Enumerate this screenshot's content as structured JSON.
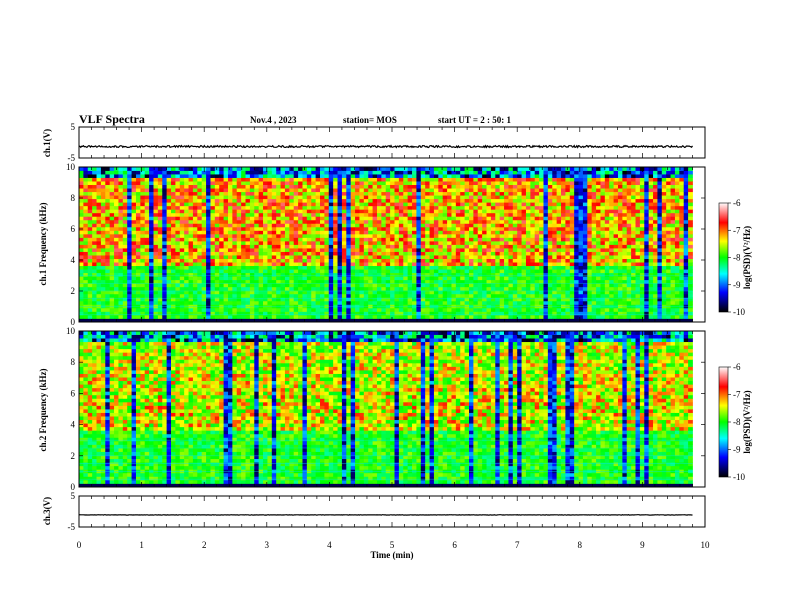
{
  "header": {
    "title": "VLF Spectra",
    "date": "Nov.4 , 2023",
    "station": "station= MOS",
    "start": "start UT = 2 : 50: 1"
  },
  "chart_data": [
    {
      "type": "line",
      "panel": "ch1-waveform",
      "ylabel": "ch.1(V)",
      "ylim": [
        -5,
        5
      ],
      "y_ticks": [
        "5",
        "-5"
      ],
      "level": -1.3,
      "x_range": [
        0,
        9.8
      ]
    },
    {
      "type": "heatmap",
      "panel": "ch1-spectrogram",
      "ylabel": "ch.1 Frequency (kHz)",
      "ylim": [
        0,
        10
      ],
      "y_ticks": [
        "0",
        "2",
        "4",
        "6",
        "8",
        "10"
      ],
      "x_range": [
        0,
        9.8
      ],
      "colorbar": {
        "label": "log(PSD)(V²/Hz)",
        "range": [
          -10,
          -6
        ],
        "ticks": [
          "-6",
          "-7",
          "-8",
          "-9",
          "-10"
        ],
        "colors": [
          "#000000",
          "#0000ff",
          "#00ffff",
          "#00ff00",
          "#ffff00",
          "#ff0000",
          "#ffffff"
        ]
      }
    },
    {
      "type": "heatmap",
      "panel": "ch2-spectrogram",
      "ylabel": "ch.2 Frequency (kHz)",
      "ylim": [
        0,
        10
      ],
      "y_ticks": [
        "0",
        "2",
        "4",
        "6",
        "8",
        "10"
      ],
      "x_range": [
        0,
        9.8
      ],
      "colorbar": {
        "label": "log(PSD)(V²/Hz)",
        "range": [
          -10,
          -6
        ],
        "ticks": [
          "-6",
          "-7",
          "-8",
          "-9",
          "-10"
        ],
        "colors": [
          "#000000",
          "#0000ff",
          "#00ffff",
          "#00ff00",
          "#ffff00",
          "#ff0000",
          "#ffffff"
        ]
      }
    },
    {
      "type": "line",
      "panel": "ch3-waveform",
      "ylabel": "ch.3(V)",
      "ylim": [
        -5,
        5
      ],
      "y_ticks": [
        "5",
        "-5"
      ],
      "level": -1.1,
      "x_range": [
        0,
        9.8
      ]
    }
  ],
  "x_axis": {
    "label": "Time (min)",
    "range": [
      0,
      10
    ],
    "ticks": [
      "0",
      "1",
      "2",
      "3",
      "4",
      "5",
      "6",
      "7",
      "8",
      "9",
      "10"
    ]
  }
}
